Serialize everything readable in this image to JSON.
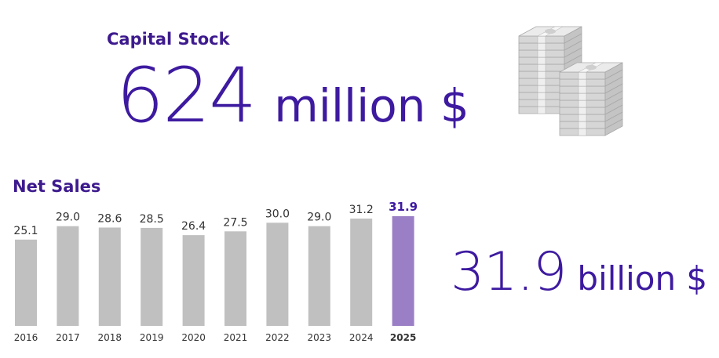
{
  "capital": {
    "title": "Capital Stock",
    "value": "624",
    "unit": "million $"
  },
  "sales": {
    "title": "Net Sales",
    "big_value": "31.9",
    "big_unit": "billion $"
  },
  "colors": {
    "bar": "#c0c0c0",
    "highlight_bar": "#9a7fc6",
    "accent": "#3d1a8e",
    "highlight_label": "#3d1aa0"
  },
  "icons": [
    "money-stack-icon"
  ],
  "chart_data": {
    "type": "bar",
    "title": "Net Sales",
    "categories": [
      "2016",
      "2017",
      "2018",
      "2019",
      "2020",
      "2021",
      "2022",
      "2023",
      "2024",
      "2025"
    ],
    "values": [
      25.1,
      29.0,
      28.6,
      28.5,
      26.4,
      27.5,
      30.0,
      29.0,
      31.2,
      31.9
    ],
    "value_labels": [
      "25.1",
      "29.0",
      "28.6",
      "28.5",
      "26.4",
      "27.5",
      "30.0",
      "29.0",
      "31.2",
      "31.9"
    ],
    "highlight": "2025",
    "xlabel": "",
    "ylabel": "",
    "ylim": [
      0,
      31.9
    ],
    "grid": false
  }
}
